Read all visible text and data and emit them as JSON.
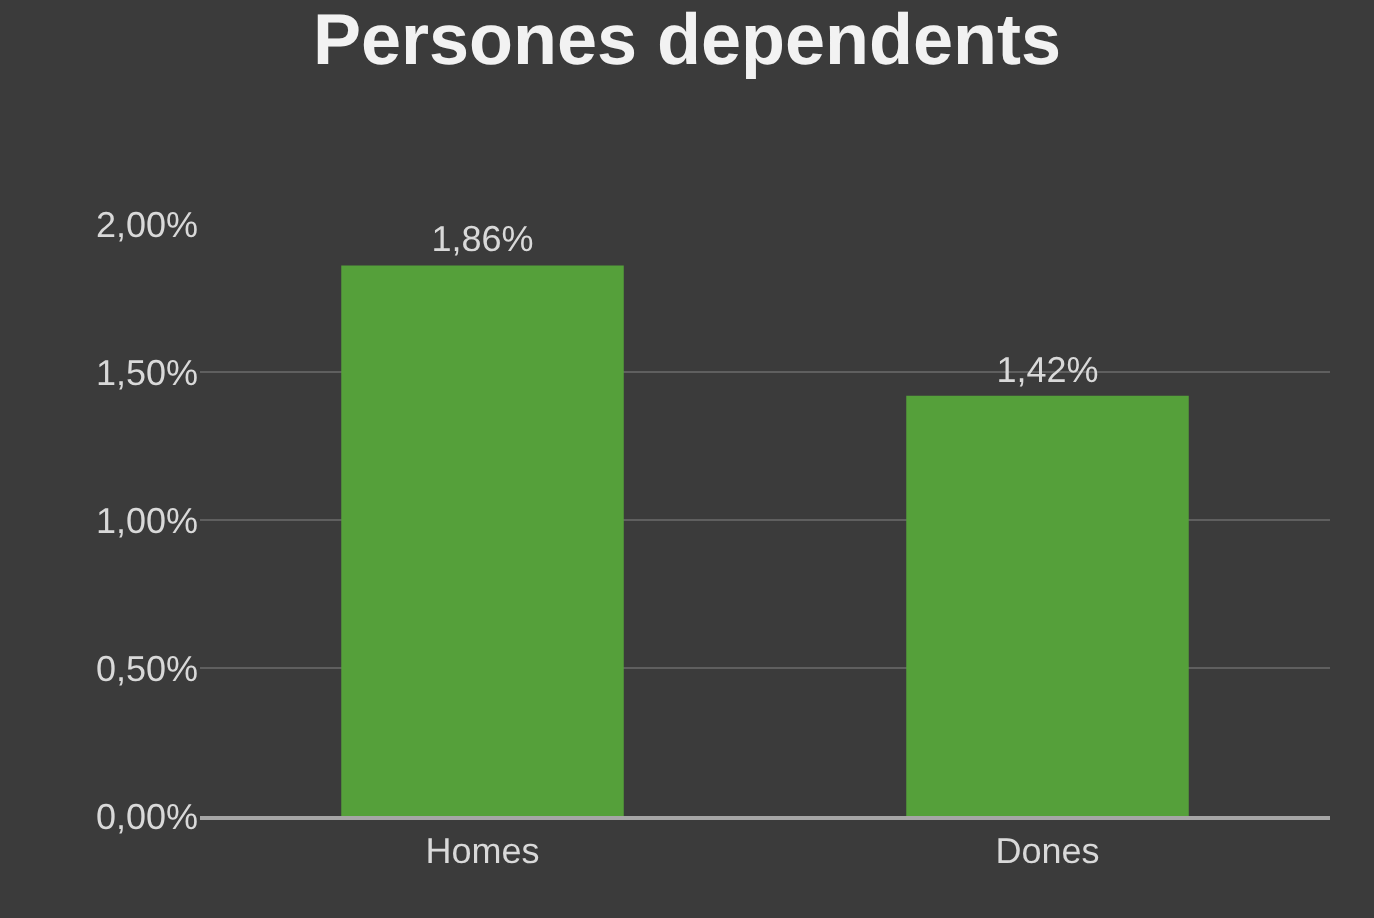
{
  "chart_data": {
    "type": "bar",
    "title": "Persones dependents",
    "categories": [
      "Homes",
      "Dones"
    ],
    "series": [
      {
        "color": "#55a03a",
        "values": [
          1.86,
          1.42
        ]
      }
    ],
    "value_labels": [
      "1,86%",
      "1,42%"
    ],
    "ylim": [
      0,
      2.0
    ],
    "yticks": [
      {
        "value": 0,
        "label": "0,00%"
      },
      {
        "value": 0.5,
        "label": "0,50%"
      },
      {
        "value": 1.0,
        "label": "1,00%"
      },
      {
        "value": 1.5,
        "label": "1,50%"
      },
      {
        "value": 2.0,
        "label": "2,00%"
      }
    ],
    "grid": "y",
    "legend": false
  }
}
